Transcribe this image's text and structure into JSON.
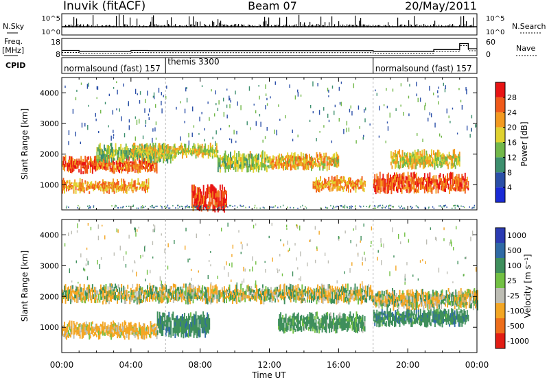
{
  "header": {
    "station": "Inuvik (fitACF)",
    "beam": "Beam 07",
    "date": "20/May/2011"
  },
  "nsky_panel": {
    "left_label": "N.Sky",
    "left_tick_top": "10^5",
    "left_tick_bottom": "10^0",
    "right_label": "N.Search",
    "right_tick_top": "10^5",
    "right_tick_bottom": "10^0"
  },
  "freq_panel": {
    "left_label": "Freq.",
    "left_unit": "[MHz]",
    "left_tick_top": "18",
    "left_tick_bottom": "8",
    "right_label": "Nave",
    "right_tick_top": "60",
    "right_tick_bottom": "0"
  },
  "cpid_panel": {
    "label": "CPID",
    "segments": [
      {
        "name": "normalsound (fast) 157",
        "start_hour": 0.0
      },
      {
        "name": "themis 3300",
        "start_hour": 6.0
      },
      {
        "name": "normalsound (fast) 157",
        "start_hour": 18.0
      }
    ]
  },
  "power_panel": {
    "ylabel": "Slant Range [km]",
    "yticks": [
      "1000",
      "2000",
      "3000",
      "4000"
    ],
    "colorbar_label": "Power [dB]",
    "colorbar_ticks": [
      "4",
      "8",
      "12",
      "16",
      "20",
      "24",
      "28"
    ],
    "colors": [
      "#1a2bd6",
      "#2a4fa8",
      "#3d8f6e",
      "#72b84a",
      "#e0d230",
      "#f39a20",
      "#f05a1a",
      "#e81414"
    ]
  },
  "velocity_panel": {
    "ylabel": "Slant Range [km]",
    "yticks": [
      "1000",
      "2000",
      "3000",
      "4000"
    ],
    "colorbar_label": "Velocity [m s⁻¹]",
    "colorbar_ticks": [
      "1000",
      "500",
      "100",
      "25",
      "-25",
      "-100",
      "-500",
      "-1000"
    ],
    "colors": [
      "#2c3cb3",
      "#2f6aa5",
      "#3f8f5c",
      "#72c043",
      "#bdbdb4",
      "#f3a624",
      "#ee6e1b",
      "#e21d14"
    ]
  },
  "x_axis": {
    "label": "Time UT",
    "ticks": [
      "00:00",
      "04:00",
      "08:00",
      "12:00",
      "16:00",
      "20:00",
      "00:00"
    ]
  },
  "chart_data": {
    "type": "heatmap",
    "title": "Inuvik (fitACF)  Beam 07  20/May/2011",
    "xlabel": "Time UT",
    "ylabel": "Slant Range [km]",
    "xlim_hours": [
      0,
      24
    ],
    "ylim_km": [
      180,
      4500
    ],
    "power_bands": [
      {
        "t0": 0.0,
        "t1": 5.0,
        "r0": 800,
        "r1": 1100,
        "power_db": 22
      },
      {
        "t0": 0.0,
        "t1": 5.5,
        "r0": 1450,
        "r1": 1850,
        "power_db": 25
      },
      {
        "t0": 2.0,
        "t1": 6.5,
        "r0": 1800,
        "r1": 2250,
        "power_db": 14
      },
      {
        "t0": 4.0,
        "t1": 9.0,
        "r0": 1950,
        "r1": 2250,
        "power_db": 18
      },
      {
        "t0": 7.5,
        "t1": 9.5,
        "r0": 200,
        "r1": 900,
        "power_db": 28
      },
      {
        "t0": 9.0,
        "t1": 12.0,
        "r0": 1500,
        "r1": 2000,
        "power_db": 16
      },
      {
        "t0": 12.0,
        "t1": 16.0,
        "r0": 1550,
        "r1": 1950,
        "power_db": 20
      },
      {
        "t0": 14.5,
        "t1": 17.5,
        "r0": 850,
        "r1": 1200,
        "power_db": 22
      },
      {
        "t0": 18.0,
        "t1": 23.5,
        "r0": 800,
        "r1": 1300,
        "power_db": 26
      },
      {
        "t0": 19.0,
        "t1": 23.0,
        "r0": 1600,
        "r1": 2050,
        "power_db": 18
      }
    ],
    "velocity_bands": [
      {
        "t0": 0.0,
        "t1": 5.5,
        "r0": 700,
        "r1": 1100,
        "velocity_ms": -100
      },
      {
        "t0": 0.0,
        "t1": 18.0,
        "r0": 1850,
        "r1": 2300,
        "velocity_ms": 0
      },
      {
        "t0": 5.5,
        "t1": 8.5,
        "r0": 750,
        "r1": 1400,
        "velocity_ms": 200
      },
      {
        "t0": 12.5,
        "t1": 17.5,
        "r0": 900,
        "r1": 1400,
        "velocity_ms": 150
      },
      {
        "t0": 18.0,
        "t1": 23.5,
        "r0": 1100,
        "r1": 1500,
        "velocity_ms": 200
      },
      {
        "t0": 18.0,
        "t1": 24.0,
        "r0": 1650,
        "r1": 2150,
        "velocity_ms": 0
      }
    ],
    "freq_mhz_steps": [
      {
        "t0": 0.0,
        "t1": 1.0,
        "value": 11.0
      },
      {
        "t0": 1.0,
        "t1": 4.0,
        "value": 10.5
      },
      {
        "t0": 4.0,
        "t1": 5.0,
        "value": 11.0
      },
      {
        "t0": 5.0,
        "t1": 18.0,
        "value": 10.9
      },
      {
        "t0": 18.0,
        "t1": 21.5,
        "value": 10.5
      },
      {
        "t0": 21.5,
        "t1": 23.0,
        "value": 11.5
      },
      {
        "t0": 23.0,
        "t1": 23.5,
        "value": 15.0
      },
      {
        "t0": 23.5,
        "t1": 24.0,
        "value": 12.0
      }
    ]
  }
}
